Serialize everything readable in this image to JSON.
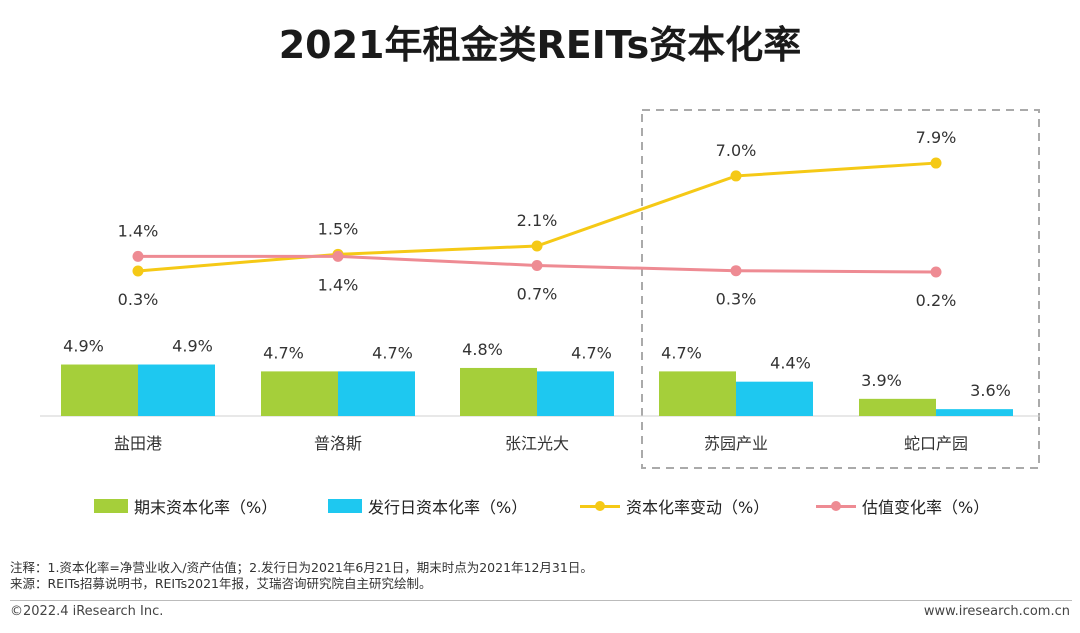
{
  "page": {
    "title": "2021年租金类REITs资本化率",
    "notes_line1": "注释：1.资本化率=净营业收入/资产估值；2.发行日为2021年6月21日，期末时点为2021年12月31日。",
    "notes_line2": "来源：REITs招募说明书，REITs2021年报，艾瑞咨询研究院自主研究绘制。",
    "footer_left": "©2022.4 iResearch Inc.",
    "footer_right": "www.iresearch.com.cn"
  },
  "colors": {
    "green": "#a5cf3a",
    "blue": "#1ec8f0",
    "yellow": "#f5c916",
    "pink": "#ee8b93",
    "box": "#aaaaaa"
  },
  "legend": [
    {
      "label": "期末资本化率（%）",
      "kind": "bar",
      "color": "#a5cf3a"
    },
    {
      "label": "发行日资本化率（%）",
      "kind": "bar",
      "color": "#1ec8f0"
    },
    {
      "label": "资本化率变动（%）",
      "kind": "line",
      "color": "#f5c916"
    },
    {
      "label": "估值变化率（%）",
      "kind": "line",
      "color": "#ee8b93"
    }
  ],
  "chart_data": {
    "type": "bar",
    "title": "2021年租金类REITs资本化率",
    "categories": [
      "盐田港",
      "普洛斯",
      "张江光大",
      "苏园产业",
      "蛇口产园"
    ],
    "series": [
      {
        "name": "期末资本化率（%）",
        "type": "bar",
        "values": [
          4.9,
          4.7,
          4.8,
          4.7,
          3.9
        ],
        "labels": [
          "4.9%",
          "4.7%",
          "4.8%",
          "4.7%",
          "3.9%"
        ]
      },
      {
        "name": "发行日资本化率（%）",
        "type": "bar",
        "values": [
          4.9,
          4.7,
          4.7,
          4.4,
          3.6
        ],
        "labels": [
          "4.9%",
          "4.7%",
          "4.7%",
          "4.4%",
          "3.6%"
        ]
      },
      {
        "name": "资本化率变动（%）",
        "type": "line",
        "values": [
          0.3,
          1.5,
          2.1,
          7.0,
          7.9
        ],
        "labels": [
          "0.3%",
          "1.5%",
          "2.1%",
          "7.0%",
          "7.9%"
        ]
      },
      {
        "name": "估值变化率（%）",
        "type": "line",
        "values": [
          1.4,
          1.4,
          0.7,
          0.3,
          0.2
        ],
        "labels": [
          "1.4%",
          "1.4%",
          "0.7%",
          "0.3%",
          "0.2%"
        ]
      }
    ],
    "highlight_categories": [
      "苏园产业",
      "蛇口产园"
    ],
    "grid": false
  }
}
